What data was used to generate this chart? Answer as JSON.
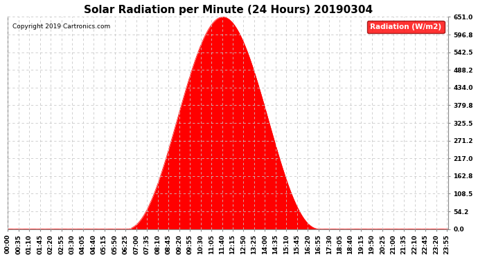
{
  "title": "Solar Radiation per Minute (24 Hours) 20190304",
  "copyright_text": "Copyright 2019 Cartronics.com",
  "legend_label": "Radiation (W/m2)",
  "ylim": [
    0.0,
    651.0
  ],
  "yticks": [
    0.0,
    54.2,
    108.5,
    162.8,
    217.0,
    271.2,
    325.5,
    379.8,
    434.0,
    488.2,
    542.5,
    596.8,
    651.0
  ],
  "fill_color": "#FF0000",
  "line_color": "#FF0000",
  "background_color": "#FFFFFF",
  "grid_color": "#C8C8C8",
  "dashed_zero_color": "#FF0000",
  "title_fontsize": 11,
  "tick_fontsize": 6.5,
  "legend_fontsize": 7.5,
  "total_minutes": 1440,
  "sunrise_minute": 385,
  "sunset_minute": 1020,
  "peak_minute": 695,
  "peak_value": 651.0,
  "figwidth": 6.9,
  "figheight": 3.75
}
